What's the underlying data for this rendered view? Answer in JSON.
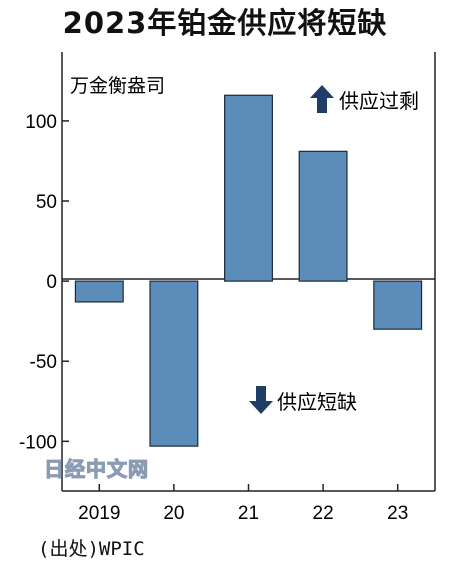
{
  "title": "2023年铂金供应将短缺",
  "source": "(出处)WPIC",
  "watermark": "日经中文网",
  "chart_data": {
    "type": "bar",
    "title": "2023年铂金供应将短缺",
    "unit": "万金衡盎司",
    "categories": [
      "2019",
      "20",
      "21",
      "22",
      "23"
    ],
    "values": [
      -13,
      -103,
      116,
      81,
      -30
    ],
    "ylim": [
      -131,
      143
    ],
    "yticks": [
      -100,
      -50,
      0,
      50,
      100
    ],
    "ytick_labels": [
      "-100",
      "-50",
      "0",
      "50",
      "100"
    ],
    "grid": false,
    "bar_color": "#5b8db8",
    "annotations": {
      "surplus": "供应过剩",
      "deficit": "供应短缺"
    },
    "arrow_color": "#1f3d66"
  }
}
